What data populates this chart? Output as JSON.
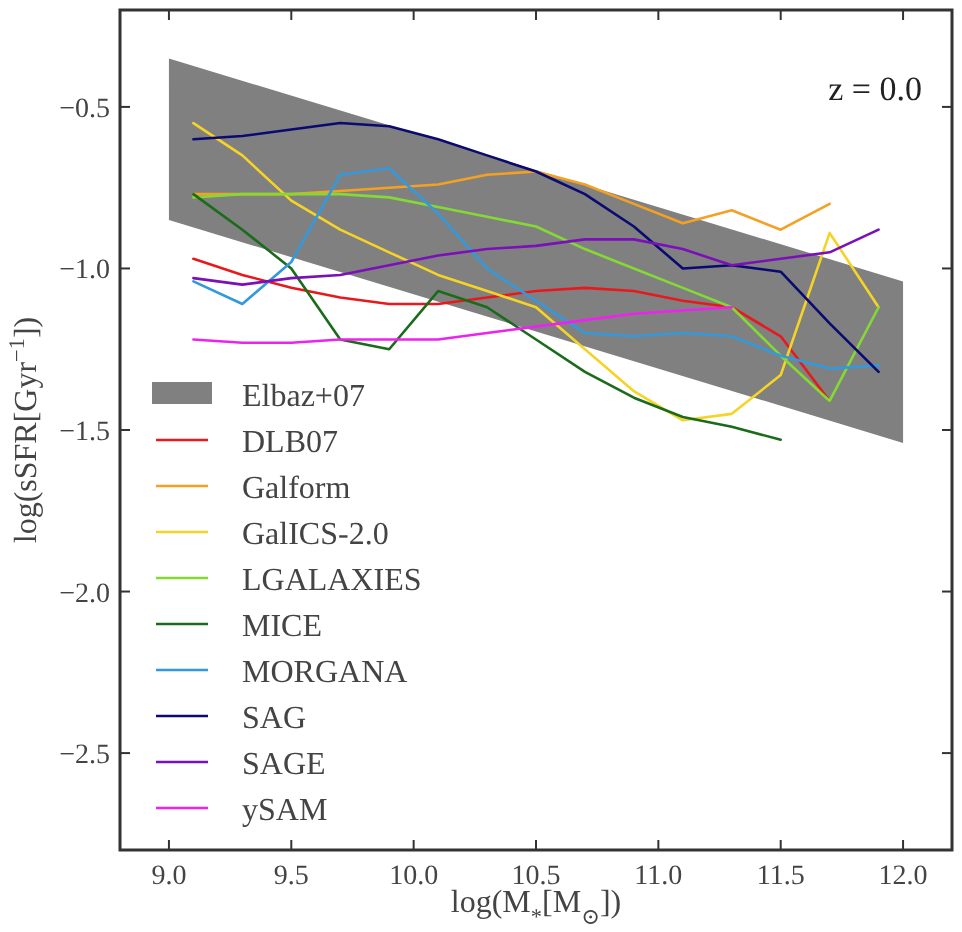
{
  "chart_data": {
    "type": "line",
    "xlabel": "log(M$_{*}$[M$_{⊙}$])",
    "ylabel": "log(sSFR[Gyr$^{−1}$])",
    "annotations": [
      "z = 0.0"
    ],
    "xlim": [
      8.8,
      12.2
    ],
    "ylim": [
      -2.8,
      -0.2
    ],
    "xticks": [
      {
        "value": 9,
        "label": "9.0"
      },
      {
        "value": 9.5,
        "label": "9.5"
      },
      {
        "value": 10,
        "label": "10.0"
      },
      {
        "value": 10.5,
        "label": "10.5"
      },
      {
        "value": 11,
        "label": "11.0"
      },
      {
        "value": 11.5,
        "label": "11.5"
      },
      {
        "value": 12,
        "label": "12.0"
      }
    ],
    "yticks": [
      {
        "value": -0.5,
        "label": "−0.5"
      },
      {
        "value": -1,
        "label": "−1.0"
      },
      {
        "value": -1.5,
        "label": "−1.5"
      },
      {
        "value": -2,
        "label": "−2.0"
      },
      {
        "value": -2.5,
        "label": "−2.5"
      }
    ],
    "grid": false,
    "legend": "left",
    "line_style": "solid",
    "marker": "none",
    "series": [
      {
        "name": "Elbaz+07",
        "color": "#808080",
        "x": [
          9,
          12
        ],
        "values": [
          null,
          null
        ],
        "lower": [
          -0.85,
          -1.54
        ],
        "upper": [
          -0.35,
          -1.04
        ]
      },
      {
        "name": "DLB07",
        "color": "#e8191c",
        "x": [
          9.1,
          9.3,
          9.5,
          9.7,
          9.9,
          10.1,
          10.3,
          10.5,
          10.7,
          10.9,
          11.1,
          11.3,
          11.5,
          11.7
        ],
        "values": [
          -0.97,
          -1.02,
          -1.06,
          -1.09,
          -1.11,
          -1.11,
          -1.09,
          -1.07,
          -1.06,
          -1.07,
          -1.1,
          -1.12,
          -1.21,
          -1.41
        ]
      },
      {
        "name": "Galform",
        "color": "#f4a024",
        "x": [
          9.1,
          9.3,
          9.5,
          9.7,
          9.9,
          10.1,
          10.3,
          10.5,
          10.7,
          10.9,
          11.1,
          11.3,
          11.5,
          11.7
        ],
        "values": [
          -0.77,
          -0.77,
          -0.77,
          -0.76,
          -0.75,
          -0.74,
          -0.71,
          -0.7,
          -0.74,
          -0.8,
          -0.86,
          -0.82,
          -0.88,
          -0.8
        ]
      },
      {
        "name": "GalICS-2.0",
        "color": "#f5d327",
        "x": [
          9.1,
          9.3,
          9.5,
          9.7,
          9.9,
          10.1,
          10.3,
          10.5,
          10.7,
          10.9,
          11.1,
          11.3,
          11.5,
          11.7,
          11.9
        ],
        "values": [
          -0.55,
          -0.65,
          -0.79,
          -0.88,
          -0.95,
          -1.02,
          -1.07,
          -1.12,
          -1.25,
          -1.38,
          -1.47,
          -1.45,
          -1.33,
          -0.89,
          -1.12
        ]
      },
      {
        "name": "LGALAXIES",
        "color": "#84d934",
        "x": [
          9.1,
          9.3,
          9.5,
          9.7,
          9.9,
          10.1,
          10.3,
          10.5,
          10.7,
          10.9,
          11.1,
          11.3,
          11.5,
          11.7,
          11.9
        ],
        "values": [
          -0.78,
          -0.77,
          -0.77,
          -0.77,
          -0.78,
          -0.81,
          -0.84,
          -0.87,
          -0.94,
          -1.0,
          -1.06,
          -1.12,
          -1.27,
          -1.41,
          -1.12
        ]
      },
      {
        "name": "MICE",
        "color": "#1a6b1a",
        "x": [
          9.1,
          9.3,
          9.5,
          9.7,
          9.9,
          10.1,
          10.3,
          10.5,
          10.7,
          10.9,
          11.1,
          11.3,
          11.5
        ],
        "values": [
          -0.77,
          -0.88,
          -1.0,
          -1.22,
          -1.25,
          -1.07,
          -1.12,
          -1.22,
          -1.32,
          -1.4,
          -1.46,
          -1.49,
          -1.53
        ]
      },
      {
        "name": "MORGANA",
        "color": "#3399dd",
        "x": [
          9.1,
          9.3,
          9.5,
          9.7,
          9.9,
          10.1,
          10.3,
          10.5,
          10.7,
          10.9,
          11.1,
          11.3,
          11.5,
          11.7,
          11.9
        ],
        "values": [
          -1.04,
          -1.11,
          -0.98,
          -0.71,
          -0.69,
          -0.83,
          -1.0,
          -1.1,
          -1.2,
          -1.21,
          -1.2,
          -1.21,
          -1.27,
          -1.31,
          -1.3
        ]
      },
      {
        "name": "SAG",
        "color": "#0a0a70",
        "x": [
          9.1,
          9.3,
          9.5,
          9.7,
          9.9,
          10.1,
          10.3,
          10.5,
          10.7,
          10.9,
          11.1,
          11.3,
          11.5,
          11.7,
          11.9
        ],
        "values": [
          -0.6,
          -0.59,
          -0.57,
          -0.55,
          -0.56,
          -0.6,
          -0.65,
          -0.7,
          -0.77,
          -0.87,
          -1.0,
          -0.99,
          -1.01,
          -1.17,
          -1.32
        ]
      },
      {
        "name": "SAGE",
        "color": "#7a10b8",
        "x": [
          9.1,
          9.3,
          9.5,
          9.7,
          9.9,
          10.1,
          10.3,
          10.5,
          10.7,
          10.9,
          11.1,
          11.3,
          11.5,
          11.7,
          11.9
        ],
        "values": [
          -1.03,
          -1.05,
          -1.03,
          -1.02,
          -0.99,
          -0.96,
          -0.94,
          -0.93,
          -0.91,
          -0.91,
          -0.94,
          -0.99,
          -0.97,
          -0.95,
          -0.88
        ]
      },
      {
        "name": "ySAM",
        "color": "#ee22ee",
        "x": [
          9.1,
          9.3,
          9.5,
          9.7,
          9.9,
          10.1,
          10.3,
          10.5,
          10.7,
          10.9,
          11.1,
          11.3
        ],
        "values": [
          -1.22,
          -1.23,
          -1.23,
          -1.22,
          -1.22,
          -1.22,
          -1.2,
          -1.18,
          -1.16,
          -1.14,
          -1.13,
          -1.12
        ]
      }
    ]
  }
}
